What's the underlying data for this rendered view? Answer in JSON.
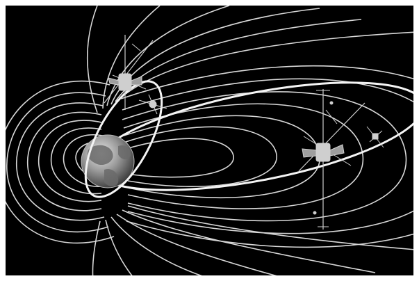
{
  "scene": {
    "background": "#000000",
    "frame": "#ffffff",
    "line_color": "#d8d8d8",
    "orbit_color": "#f4f4f4",
    "spacecraft_color": "#cfcfcf"
  },
  "objects": {
    "planet": "earth",
    "field": "magnetic-field-lines",
    "orbits": [
      "inner-orbit",
      "outer-orbit"
    ],
    "spacecraft": [
      "spacecraft-near-earth",
      "spacecraft-small",
      "spacecraft-far",
      "spacecraft-distant"
    ]
  }
}
